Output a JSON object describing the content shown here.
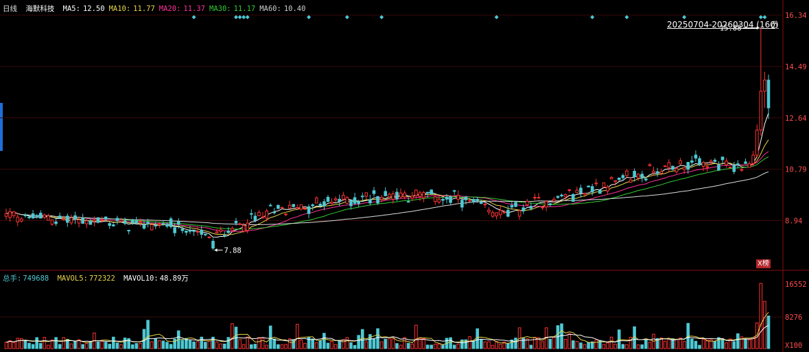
{
  "header": {
    "period": "日线",
    "stock_name": "海默科技",
    "ma_items": [
      {
        "label": "MA5:",
        "value": "12.50",
        "color": "#ffffff"
      },
      {
        "label": "MA10:",
        "value": "11.77",
        "color": "#e8d44d"
      },
      {
        "label": "MA20:",
        "value": "11.37",
        "color": "#ff3399"
      },
      {
        "label": "MA30:",
        "value": "11.17",
        "color": "#33cc33"
      },
      {
        "label": "MA60:",
        "value": "10.40",
        "color": "#cccccc"
      }
    ]
  },
  "range_label": "20250704-20260304 (160)",
  "badge": "X榜",
  "volume_header": {
    "label": "总手:",
    "value": "749688",
    "mavol5_label": "MAVOL5:",
    "mavol5_value": "772322",
    "mavol10_label": "MAVOL10:",
    "mavol10_value": "48.89万"
  },
  "chart_data": {
    "type": "candlestick",
    "price_axis": {
      "ticks": [
        "16.34",
        "14.49",
        "12.64",
        "10.79",
        "8.94"
      ],
      "min": 7.2,
      "max": 16.34
    },
    "volume_axis": {
      "ticks": [
        "16552",
        "8276",
        "X100"
      ],
      "max": 16552
    },
    "annotations": {
      "high_label": "15.88",
      "high_value": 15.88,
      "low_label": "7.88",
      "low_value": 7.88
    },
    "signal_marker_index": [
      49,
      60,
      61,
      62,
      63,
      79,
      89,
      98,
      128,
      153,
      162,
      177,
      197,
      198
    ],
    "colors": {
      "up": "#ff3333",
      "down": "#4ec9d3",
      "grid": "#3a0a0a",
      "axis": "#8c0d0d"
    }
  }
}
